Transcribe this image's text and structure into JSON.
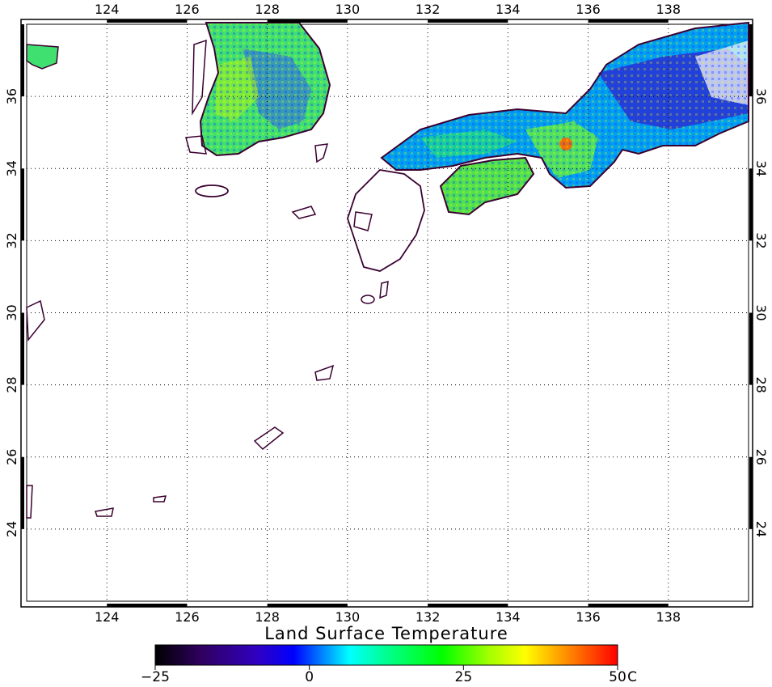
{
  "title": "Land Surface Temperature",
  "map": {
    "lon_range": [
      122,
      140
    ],
    "lat_range": [
      22,
      38
    ],
    "lon_ticks": [
      "124",
      "126",
      "128",
      "130",
      "132",
      "134",
      "136",
      "138"
    ],
    "lat_ticks": [
      "24",
      "26",
      "28",
      "30",
      "32",
      "34",
      "36"
    ],
    "grid": "dotted",
    "coastline_color": "#3a0030"
  },
  "colorbar": {
    "min": -25,
    "max": 50,
    "unit": "C",
    "tick_labels": [
      "−25",
      "0",
      "25",
      "50"
    ],
    "unit_label": "C",
    "colors": [
      "#000000",
      "#2a0050",
      "#4000a0",
      "#0000ff",
      "#0080ff",
      "#00ffff",
      "#00ff80",
      "#00ff00",
      "#80ff00",
      "#ffff00",
      "#ff8000",
      "#ff0000"
    ]
  }
}
